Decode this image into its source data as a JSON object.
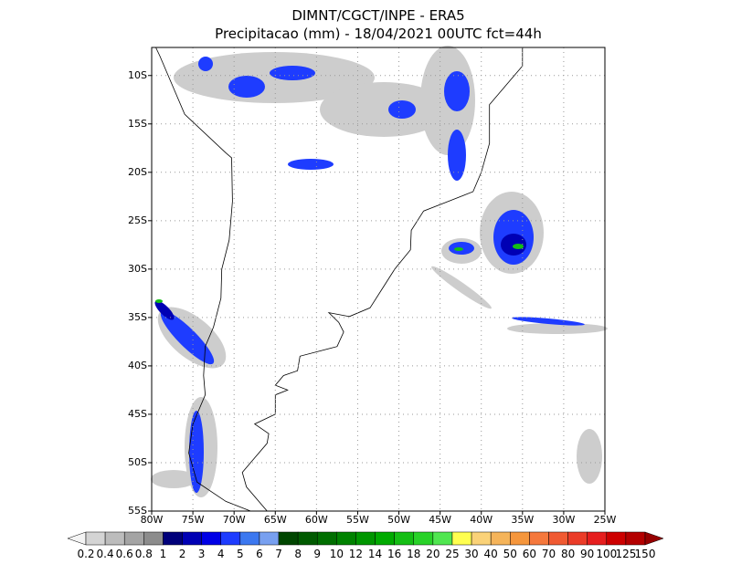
{
  "header": {
    "title": "DIMNT/CGCT/INPE -  ERA5",
    "subtitle": "Precipitacao (mm) - 18/04/2021 00UTC fct=44h"
  },
  "map": {
    "lonlim": [
      -80,
      -25
    ],
    "latlim": [
      -55,
      -7.1
    ],
    "lat_ticks": [
      {
        "value": -10,
        "label": "10S"
      },
      {
        "value": -15,
        "label": "15S"
      },
      {
        "value": -20,
        "label": "20S"
      },
      {
        "value": -25,
        "label": "25S"
      },
      {
        "value": -30,
        "label": "30S"
      },
      {
        "value": -35,
        "label": "35S"
      },
      {
        "value": -40,
        "label": "40S"
      },
      {
        "value": -45,
        "label": "45S"
      },
      {
        "value": -50,
        "label": "50S"
      },
      {
        "value": -55,
        "label": "55S"
      }
    ],
    "lon_ticks": [
      {
        "value": -80,
        "label": "80W"
      },
      {
        "value": -75,
        "label": "75W"
      },
      {
        "value": -70,
        "label": "70W"
      },
      {
        "value": -65,
        "label": "65W"
      },
      {
        "value": -60,
        "label": "60W"
      },
      {
        "value": -55,
        "label": "55W"
      },
      {
        "value": -50,
        "label": "50W"
      },
      {
        "value": -45,
        "label": "45W"
      },
      {
        "value": -40,
        "label": "40W"
      },
      {
        "value": -35,
        "label": "35W"
      },
      {
        "value": -30,
        "label": "30W"
      },
      {
        "value": -25,
        "label": "25W"
      }
    ],
    "grid": true
  },
  "colorbar": {
    "labels": [
      "0.2",
      "0.4",
      "0.6",
      "0.8",
      "1",
      "2",
      "3",
      "4",
      "5",
      "6",
      "7",
      "8",
      "9",
      "10",
      "12",
      "14",
      "16",
      "18",
      "20",
      "25",
      "30",
      "40",
      "50",
      "60",
      "70",
      "80",
      "90",
      "100",
      "125",
      "150"
    ],
    "colors": [
      "#f4f4f4",
      "#d4d4d4",
      "#bcbcbc",
      "#a4a4a4",
      "#8c8c8c",
      "#00007a",
      "#0000b4",
      "#0000e6",
      "#1e3cff",
      "#3c78f0",
      "#78a0f0",
      "#004600",
      "#005a00",
      "#006e00",
      "#008200",
      "#009600",
      "#00aa00",
      "#14be14",
      "#28d228",
      "#50e650",
      "#ffff50",
      "#fad278",
      "#f5b45a",
      "#f5963c",
      "#f5783c",
      "#f05a32",
      "#eb3c28",
      "#e61e1e",
      "#cd0000",
      "#b40000",
      "#960000"
    ]
  }
}
